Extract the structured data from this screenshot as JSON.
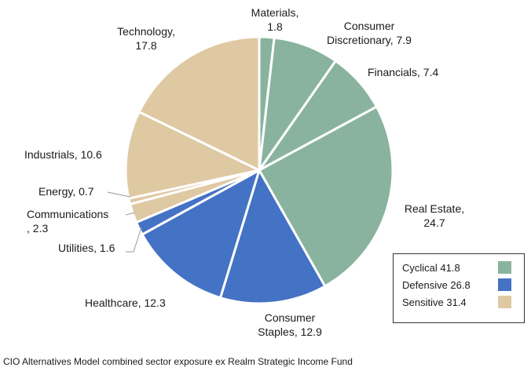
{
  "chart_data": {
    "type": "pie",
    "unit": "%",
    "slices": [
      {
        "label": "Materials",
        "value": 1.8,
        "group": "Cyclical"
      },
      {
        "label": "Consumer Discretionary",
        "value": 7.9,
        "group": "Cyclical"
      },
      {
        "label": "Financials",
        "value": 7.4,
        "group": "Cyclical"
      },
      {
        "label": "Real Estate",
        "value": 24.7,
        "group": "Cyclical"
      },
      {
        "label": "Consumer Staples",
        "value": 12.9,
        "group": "Defensive"
      },
      {
        "label": "Healthcare",
        "value": 12.3,
        "group": "Defensive"
      },
      {
        "label": "Utilities",
        "value": 1.6,
        "group": "Defensive"
      },
      {
        "label": "Communications",
        "value": 2.3,
        "group": "Sensitive"
      },
      {
        "label": "Energy",
        "value": 0.7,
        "group": "Sensitive"
      },
      {
        "label": "Industrials",
        "value": 10.6,
        "group": "Sensitive"
      },
      {
        "label": "Technology",
        "value": 17.8,
        "group": "Sensitive"
      }
    ],
    "slice_labels": [
      [
        "Materials,",
        "1.8"
      ],
      [
        "Consumer",
        "Discretionary, 7.9"
      ],
      [
        "Financials, 7.4"
      ],
      [
        "Real Estate,",
        "24.7"
      ],
      [
        "Consumer",
        "Staples, 12.9"
      ],
      [
        "Healthcare, 12.3"
      ],
      [
        "Utilities, 1.6"
      ],
      [
        "Communications",
        ", 2.3"
      ],
      [
        "Energy, 0.7"
      ],
      [
        "Industrials, 10.6"
      ],
      [
        "Technology,",
        "17.8"
      ]
    ],
    "legend": {
      "placement": "bottom-right",
      "items": [
        {
          "label": "Cyclical 41.8",
          "group": "Cyclical",
          "color": "#8ab39f"
        },
        {
          "label": "Defensive 26.8",
          "group": "Defensive",
          "color": "#4472c4"
        },
        {
          "label": "Sensitive 31.4",
          "group": "Sensitive",
          "color": "#dfc9a3"
        }
      ]
    }
  },
  "caption": "CIO Alternatives Model combined sector exposure ex Realm Strategic Income Fund"
}
